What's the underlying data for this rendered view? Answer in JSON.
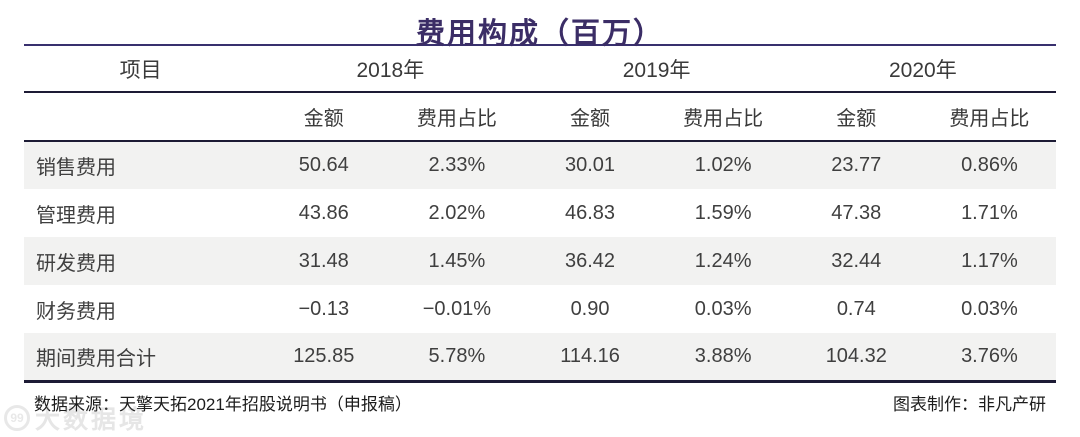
{
  "title": "费用构成（百万）",
  "colors": {
    "title_text": "#3b2d66",
    "title_rule": "#38306e",
    "header_rule": "#1d1b35",
    "row_stripe": "#f2f2f1",
    "body_text": "#3f3f3f"
  },
  "table": {
    "item_header": "项目",
    "year_headers": [
      "2018年",
      "2019年",
      "2020年"
    ],
    "sub_headers": {
      "amount": "金额",
      "ratio": "费用占比"
    },
    "rows": [
      {
        "label": "销售费用",
        "values": [
          "50.64",
          "2.33%",
          "30.01",
          "1.02%",
          "23.77",
          "0.86%"
        ]
      },
      {
        "label": "管理费用",
        "values": [
          "43.86",
          "2.02%",
          "46.83",
          "1.59%",
          "47.38",
          "1.71%"
        ]
      },
      {
        "label": "研发费用",
        "values": [
          "31.48",
          "1.45%",
          "36.42",
          "1.24%",
          "32.44",
          "1.17%"
        ]
      },
      {
        "label": "财务费用",
        "values": [
          "−0.13",
          "−0.01%",
          "0.90",
          "0.03%",
          "0.74",
          "0.03%"
        ]
      },
      {
        "label": "期间费用合计",
        "values": [
          "125.85",
          "5.78%",
          "114.16",
          "3.88%",
          "104.32",
          "3.76%"
        ]
      }
    ]
  },
  "footer": {
    "source": "数据来源：天擎天拓2021年招股说明书（申报稿）",
    "maker": "图表制作：非凡产研"
  },
  "watermark": {
    "logo": "99",
    "text": "大数据境"
  },
  "chart_data": {
    "type": "table",
    "title": "费用构成（百万）",
    "categories": [
      "销售费用",
      "管理费用",
      "研发费用",
      "财务费用",
      "期间费用合计"
    ],
    "series": [
      {
        "name": "2018年 金额",
        "values": [
          50.64,
          43.86,
          31.48,
          -0.13,
          125.85
        ]
      },
      {
        "name": "2018年 费用占比(%)",
        "values": [
          2.33,
          2.02,
          1.45,
          -0.01,
          5.78
        ]
      },
      {
        "name": "2019年 金额",
        "values": [
          30.01,
          46.83,
          36.42,
          0.9,
          114.16
        ]
      },
      {
        "name": "2019年 费用占比(%)",
        "values": [
          1.02,
          1.59,
          1.24,
          0.03,
          3.88
        ]
      },
      {
        "name": "2020年 金额",
        "values": [
          23.77,
          47.38,
          32.44,
          0.74,
          104.32
        ]
      },
      {
        "name": "2020年 费用占比(%)",
        "values": [
          0.86,
          1.71,
          1.17,
          0.03,
          3.76
        ]
      }
    ],
    "layout": {
      "grid": "horizontal rules only",
      "row_striping": true,
      "legend_position": "none"
    }
  }
}
